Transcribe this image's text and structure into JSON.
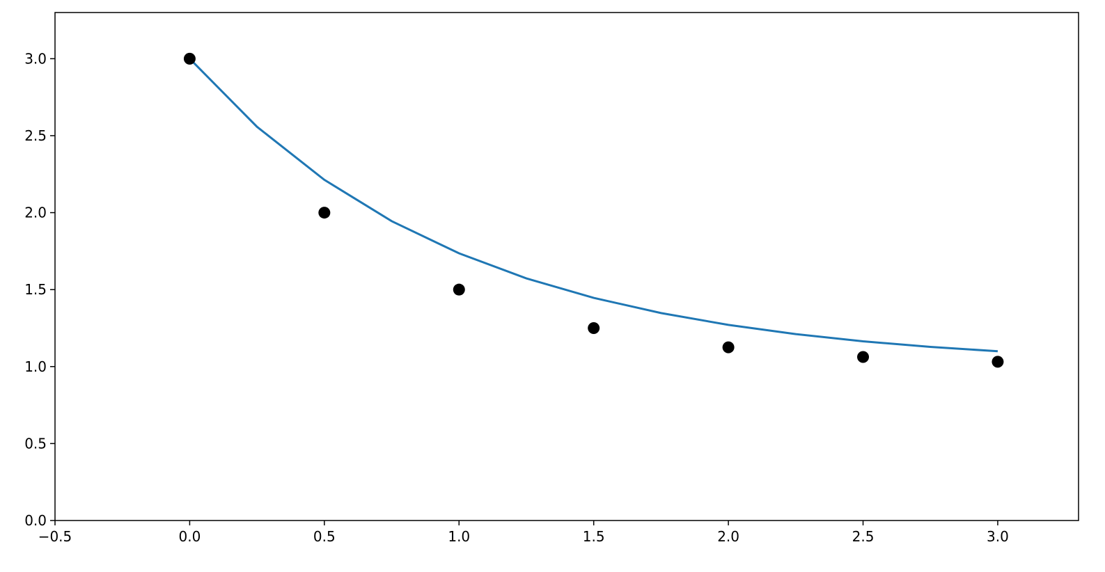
{
  "chart_data": {
    "type": "scatter",
    "xlim": [
      -0.5,
      3.3
    ],
    "ylim": [
      0,
      3.3
    ],
    "xticks": [
      {
        "value": -0.5,
        "label": "−0.5"
      },
      {
        "value": 0,
        "label": "0.0"
      },
      {
        "value": 0.5,
        "label": "0.5"
      },
      {
        "value": 1,
        "label": "1.0"
      },
      {
        "value": 1.5,
        "label": "1.5"
      },
      {
        "value": 2,
        "label": "2.0"
      },
      {
        "value": 2.5,
        "label": "2.5"
      },
      {
        "value": 3,
        "label": "3.0"
      }
    ],
    "yticks": [
      {
        "value": 0,
        "label": "0.0"
      },
      {
        "value": 0.5,
        "label": "0.5"
      },
      {
        "value": 1,
        "label": "1.0"
      },
      {
        "value": 1.5,
        "label": "1.5"
      },
      {
        "value": 2,
        "label": "2.0"
      },
      {
        "value": 2.5,
        "label": "2.5"
      },
      {
        "value": 3,
        "label": "3.0"
      }
    ],
    "grid": false,
    "series": [
      {
        "type": "line",
        "color": "#1f77b4",
        "x": [
          0,
          0.25,
          0.5,
          0.75,
          1,
          1.25,
          1.5,
          1.75,
          2,
          2.25,
          2.5,
          2.75,
          3
        ],
        "values": [
          3,
          2.5576,
          2.2131,
          1.9447,
          1.7358,
          1.573,
          1.4463,
          1.3476,
          1.2707,
          1.2108,
          1.1642,
          1.1278,
          1.0996
        ]
      },
      {
        "type": "scatter",
        "color": "#000000",
        "x": [
          0,
          0.5,
          1,
          1.5,
          2,
          2.5,
          3
        ],
        "values": [
          3,
          2,
          1.5,
          1.25,
          1.125,
          1.0625,
          1.03125
        ]
      }
    ]
  }
}
